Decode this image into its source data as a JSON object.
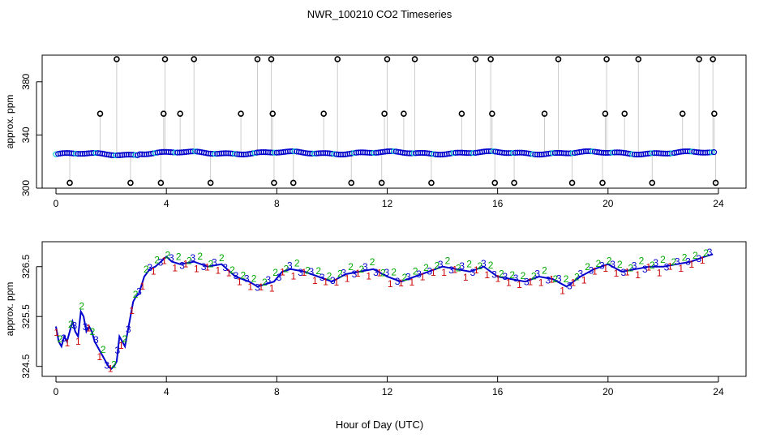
{
  "title": "NWR_100210  CO2 Timeseries",
  "xlabel": "Hour of Day (UTC)",
  "chart_data": [
    {
      "type": "scatter",
      "name": "full-range",
      "ylabel": "approx. ppm",
      "xlim": [
        -0.5,
        25
      ],
      "ylim": [
        300,
        400
      ],
      "xticks": [
        0,
        4,
        8,
        12,
        16,
        20,
        24
      ],
      "yticks": [
        300,
        340,
        380
      ],
      "ytick_labels": [
        "300",
        "340",
        "380"
      ],
      "baseline": 326.5,
      "outliers": [
        {
          "x": 0.5,
          "y": 304
        },
        {
          "x": 1.6,
          "y": 356
        },
        {
          "x": 2.2,
          "y": 397
        },
        {
          "x": 2.7,
          "y": 304
        },
        {
          "x": 3.8,
          "y": 304
        },
        {
          "x": 3.9,
          "y": 356
        },
        {
          "x": 3.95,
          "y": 397
        },
        {
          "x": 4.5,
          "y": 356
        },
        {
          "x": 5.0,
          "y": 397
        },
        {
          "x": 5.6,
          "y": 304
        },
        {
          "x": 6.7,
          "y": 356
        },
        {
          "x": 7.3,
          "y": 397
        },
        {
          "x": 7.8,
          "y": 397
        },
        {
          "x": 7.85,
          "y": 356
        },
        {
          "x": 7.9,
          "y": 304
        },
        {
          "x": 8.6,
          "y": 304
        },
        {
          "x": 9.7,
          "y": 356
        },
        {
          "x": 10.2,
          "y": 397
        },
        {
          "x": 10.7,
          "y": 304
        },
        {
          "x": 11.8,
          "y": 304
        },
        {
          "x": 11.9,
          "y": 356
        },
        {
          "x": 12.0,
          "y": 397
        },
        {
          "x": 12.6,
          "y": 356
        },
        {
          "x": 13.0,
          "y": 397
        },
        {
          "x": 13.6,
          "y": 304
        },
        {
          "x": 14.7,
          "y": 356
        },
        {
          "x": 15.2,
          "y": 397
        },
        {
          "x": 15.75,
          "y": 397
        },
        {
          "x": 15.8,
          "y": 356
        },
        {
          "x": 15.9,
          "y": 304
        },
        {
          "x": 16.6,
          "y": 304
        },
        {
          "x": 17.7,
          "y": 356
        },
        {
          "x": 18.2,
          "y": 397
        },
        {
          "x": 18.7,
          "y": 304
        },
        {
          "x": 19.8,
          "y": 304
        },
        {
          "x": 19.9,
          "y": 356
        },
        {
          "x": 19.95,
          "y": 397
        },
        {
          "x": 20.6,
          "y": 356
        },
        {
          "x": 21.1,
          "y": 397
        },
        {
          "x": 21.6,
          "y": 304
        },
        {
          "x": 22.7,
          "y": 356
        },
        {
          "x": 23.3,
          "y": 397
        },
        {
          "x": 23.8,
          "y": 397
        },
        {
          "x": 23.85,
          "y": 356
        },
        {
          "x": 23.9,
          "y": 304
        }
      ],
      "colors": {
        "base": "#0000cc",
        "alt": "#00cccc",
        "outlier": "#000000",
        "drop": "#999999"
      }
    },
    {
      "type": "line",
      "name": "zoomed",
      "ylabel": "approx. ppm",
      "xlim": [
        -0.5,
        25
      ],
      "ylim": [
        324.3,
        327.0
      ],
      "xticks": [
        0,
        4,
        8,
        12,
        16,
        20,
        24
      ],
      "yticks": [
        324.5,
        325.5,
        326.5
      ],
      "ytick_labels": [
        "324.5",
        "325.5",
        "326.5"
      ],
      "marker_labels": [
        "1",
        "2",
        "3"
      ],
      "colors": {
        "line": "#0000cc",
        "s1": "#cc0000",
        "s2": "#00aa00",
        "s3": "#0000cc"
      },
      "series": {
        "x": [
          0,
          0.1,
          0.2,
          0.3,
          0.4,
          0.5,
          0.6,
          0.7,
          0.8,
          0.9,
          1.0,
          1.1,
          1.2,
          1.3,
          1.4,
          1.5,
          1.6,
          1.7,
          1.8,
          1.9,
          2.0,
          2.1,
          2.2,
          2.3,
          2.4,
          2.5,
          2.6,
          2.7,
          2.8,
          2.9,
          3.0,
          3.2,
          3.4,
          3.6,
          3.8,
          4.0,
          4.2,
          4.5,
          5.0,
          5.5,
          6.0,
          6.5,
          7.0,
          7.3,
          7.6,
          7.9,
          8.2,
          8.5,
          9.0,
          9.5,
          10.0,
          10.5,
          11.0,
          11.5,
          12.0,
          12.5,
          13.0,
          13.5,
          14.0,
          14.5,
          15.0,
          15.5,
          16.0,
          16.5,
          17.0,
          17.5,
          18.0,
          18.5,
          19.0,
          19.5,
          20.0,
          20.5,
          21.0,
          21.5,
          22.0,
          22.5,
          23.0,
          23.5,
          23.8
        ],
        "y": [
          325.3,
          325.0,
          324.9,
          325.1,
          325.0,
          325.2,
          325.4,
          325.2,
          325.1,
          325.6,
          325.5,
          325.2,
          325.3,
          325.2,
          325.0,
          324.9,
          324.8,
          324.7,
          324.6,
          324.5,
          324.45,
          324.5,
          324.6,
          325.1,
          325.0,
          324.9,
          325.2,
          325.5,
          325.8,
          325.9,
          325.95,
          326.3,
          326.45,
          326.5,
          326.6,
          326.7,
          326.6,
          326.55,
          326.6,
          326.5,
          326.55,
          326.3,
          326.2,
          326.1,
          326.15,
          326.2,
          326.4,
          326.45,
          326.4,
          326.3,
          326.2,
          326.35,
          326.4,
          326.45,
          326.3,
          326.2,
          326.3,
          326.4,
          326.5,
          326.45,
          326.4,
          326.5,
          326.3,
          326.25,
          326.2,
          326.3,
          326.25,
          326.1,
          326.3,
          326.45,
          326.55,
          326.4,
          326.45,
          326.5,
          326.5,
          326.55,
          326.6,
          326.7,
          326.75
        ]
      }
    }
  ]
}
